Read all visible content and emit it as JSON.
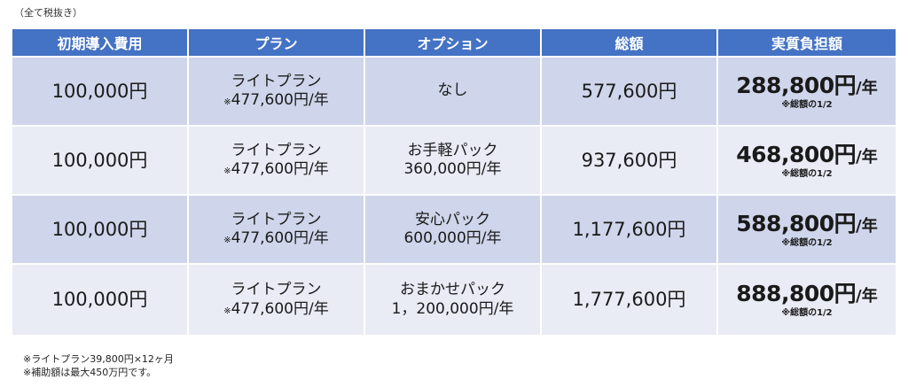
{
  "caption_top": "（全て税抜き）",
  "headers": [
    "初期導入費用",
    "プラン",
    "オプション",
    "総額",
    "実質負担額"
  ],
  "rows": [
    {
      "initial": "100,000円",
      "plan_name": "ライトプラン",
      "plan_mark": "※",
      "plan_price": "477,600円/年",
      "option_name": "なし",
      "option_price": "",
      "total": "577,600円",
      "burden_amount": "288,800円",
      "burden_unit": "/年",
      "burden_note": "※総額の1/2"
    },
    {
      "initial": "100,000円",
      "plan_name": "ライトプラン",
      "plan_mark": "※",
      "plan_price": "477,600円/年",
      "option_name": "お手軽パック",
      "option_price": "360,000円/年",
      "total": "937,600円",
      "burden_amount": "468,800円",
      "burden_unit": "/年",
      "burden_note": "※総額の1/2"
    },
    {
      "initial": "100,000円",
      "plan_name": "ライトプラン",
      "plan_mark": "※",
      "plan_price": "477,600円/年",
      "option_name": "安心パック",
      "option_price": "600,000円/年",
      "total": "1,177,600円",
      "burden_amount": "588,800円",
      "burden_unit": "/年",
      "burden_note": "※総額の1/2"
    },
    {
      "initial": "100,000円",
      "plan_name": "ライトプラン",
      "plan_mark": "※",
      "plan_price": "477,600円/年",
      "option_name": "おまかせパック",
      "option_price": "1，200,000円/年",
      "total": "1,777,600円",
      "burden_amount": "888,800円",
      "burden_unit": "/年",
      "burden_note": "※総額の1/2"
    }
  ],
  "notes": [
    "※ライトプラン39,800円×12ヶ月",
    "※補助額は最大450万円です。"
  ]
}
